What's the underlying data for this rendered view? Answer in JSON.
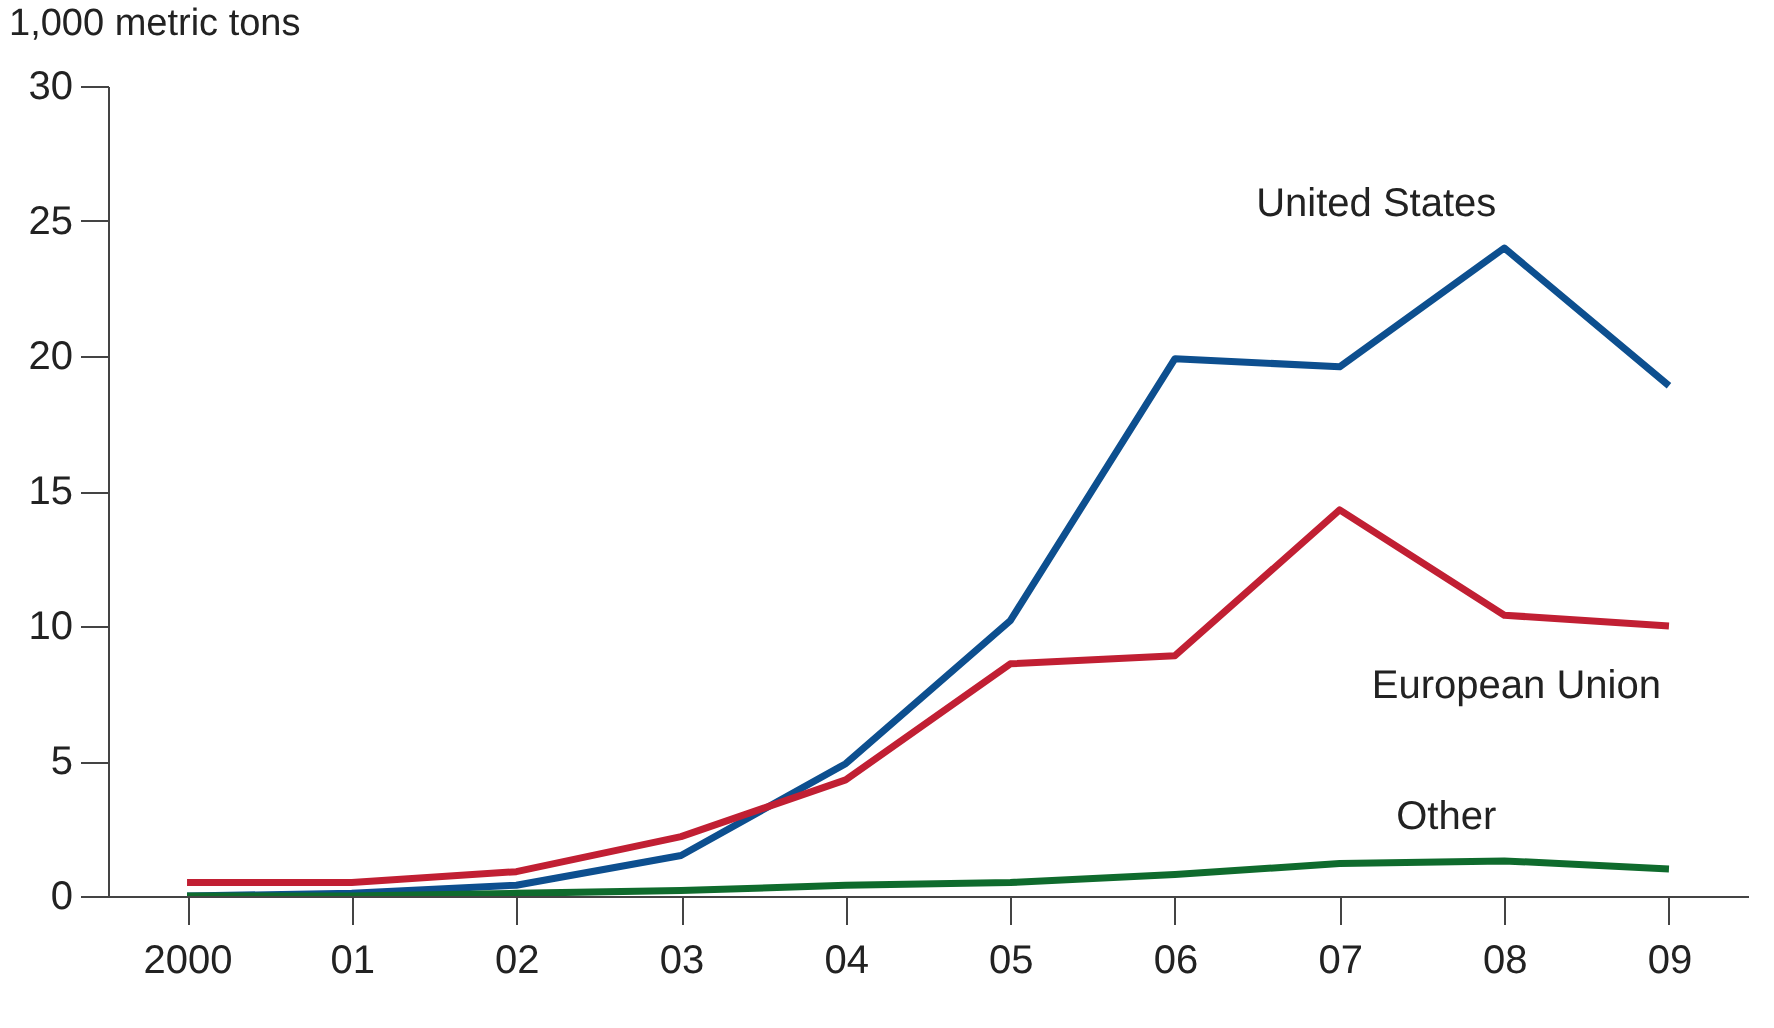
{
  "chart_data": {
    "type": "line",
    "ylabel": "1,000 metric tons",
    "categories": [
      "2000",
      "01",
      "02",
      "03",
      "04",
      "05",
      "06",
      "07",
      "08",
      "09"
    ],
    "series": [
      {
        "name": "United States",
        "color": "#0d4f8f",
        "values": [
          0,
          0.1,
          0.4,
          1.5,
          4.9,
          10.2,
          19.9,
          19.6,
          24.0,
          18.9
        ]
      },
      {
        "name": "European Union",
        "color": "#c11f33",
        "values": [
          0.5,
          0.5,
          0.9,
          2.2,
          4.3,
          8.6,
          8.9,
          14.3,
          10.4,
          10.0
        ]
      },
      {
        "name": "Other",
        "color": "#0f6b2d",
        "values": [
          0,
          0,
          0.1,
          0.2,
          0.4,
          0.5,
          0.8,
          1.2,
          1.3,
          1.0
        ]
      }
    ],
    "ylim": [
      0,
      30
    ],
    "yticks": [
      0,
      5,
      10,
      15,
      20,
      25,
      30
    ],
    "grid": false,
    "legend": false,
    "line_style": "solid",
    "marker": "none"
  }
}
